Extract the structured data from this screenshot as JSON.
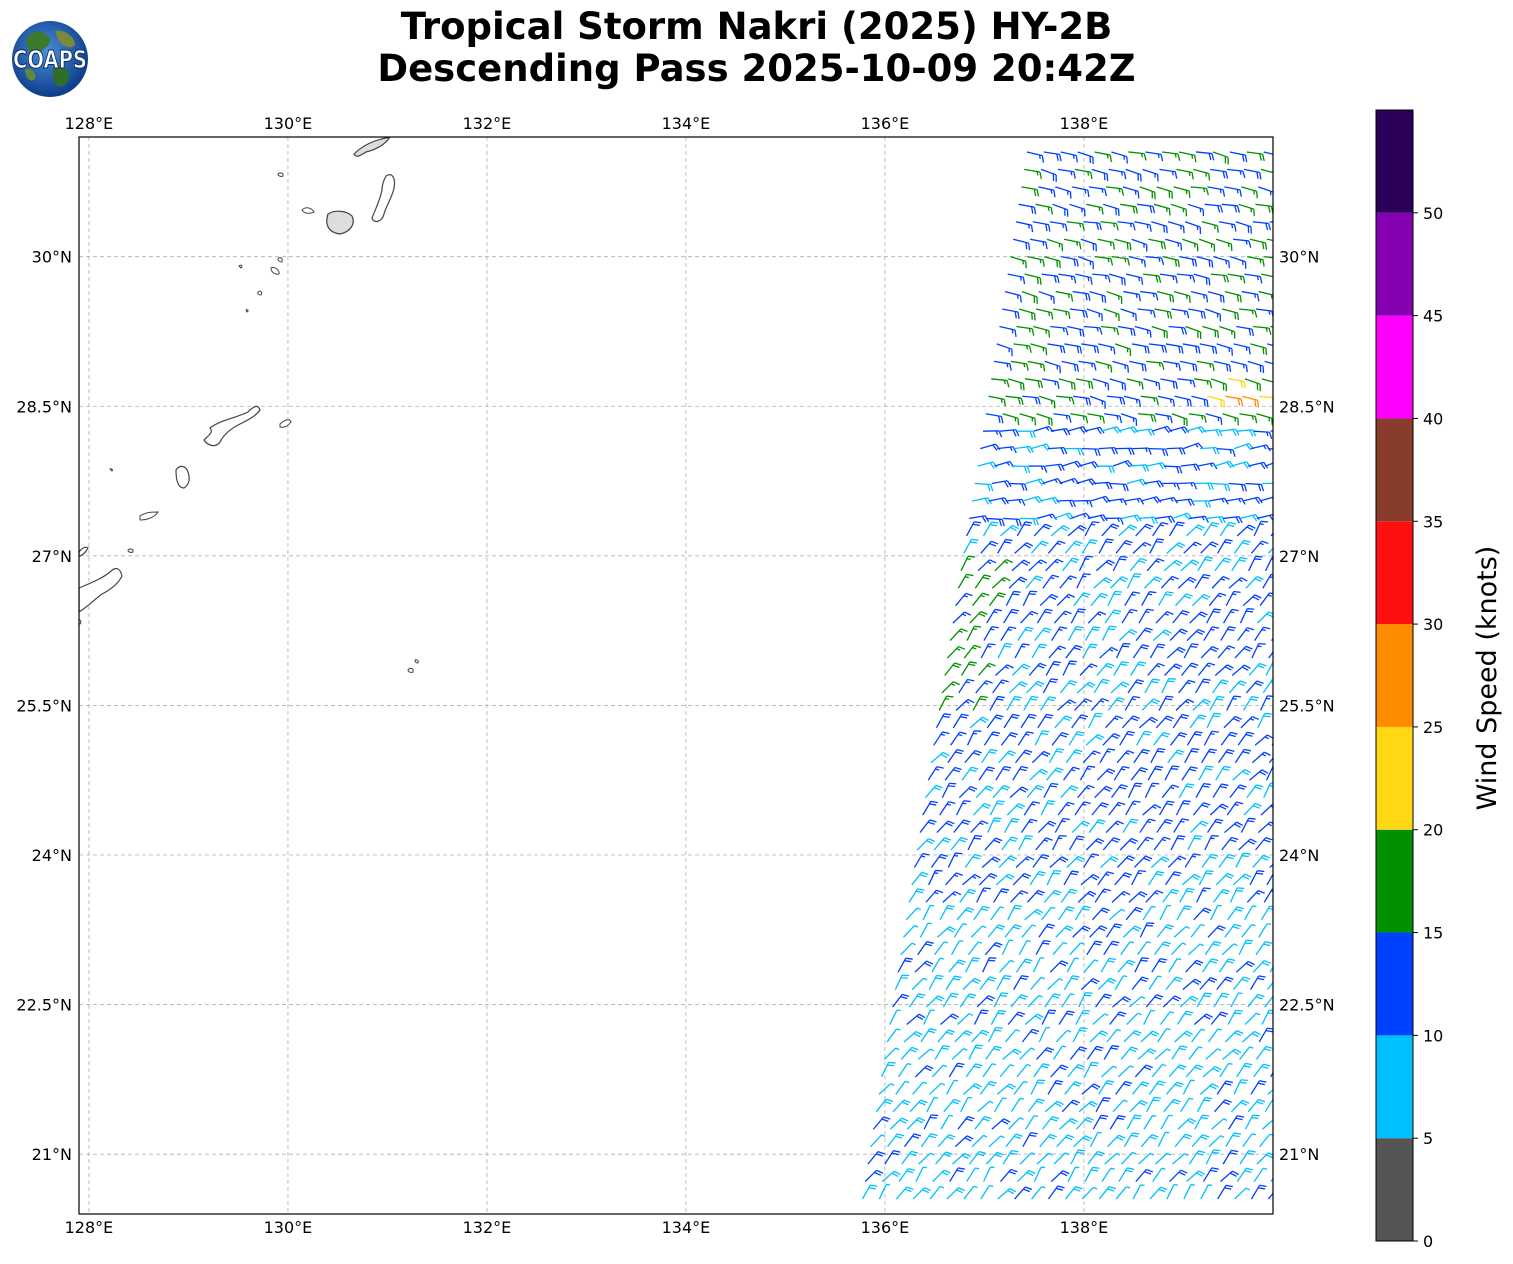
{
  "title": {
    "line1": "Tropical Storm Nakri (2025) HY-2B",
    "line2": "Descending Pass 2025-10-09 20:42Z"
  },
  "logo": {
    "text": "COAPS",
    "icon": "globe-icon"
  },
  "map": {
    "lon_range": [
      127.9,
      139.9
    ],
    "lat_range": [
      20.4,
      31.2
    ],
    "lon_ticks": [
      {
        "value": 128,
        "label": "128°E"
      },
      {
        "value": 130,
        "label": "130°E"
      },
      {
        "value": 132,
        "label": "132°E"
      },
      {
        "value": 134,
        "label": "134°E"
      },
      {
        "value": 136,
        "label": "136°E"
      },
      {
        "value": 138,
        "label": "138°E"
      }
    ],
    "lat_ticks": [
      {
        "value": 30,
        "label": "30°N"
      },
      {
        "value": 28.5,
        "label": "28.5°N"
      },
      {
        "value": 27,
        "label": "27°N"
      },
      {
        "value": 25.5,
        "label": "25.5°N"
      },
      {
        "value": 24,
        "label": "24°N"
      },
      {
        "value": 22.5,
        "label": "22.5°N"
      },
      {
        "value": 21,
        "label": "21°N"
      }
    ],
    "gridlines": true,
    "swath": {
      "note_none": "",
      "corners": [
        [
          137.4,
          31.2
        ],
        [
          139.9,
          31.2
        ],
        [
          139.9,
          20.4
        ],
        [
          135.7,
          20.4
        ]
      ]
    },
    "colors": {
      "land_outline": "#444444",
      "grid": "#b0b0b0"
    }
  },
  "colorbar": {
    "title": "Wind Speed (knots)",
    "ticks": [
      "0",
      "5",
      "10",
      "15",
      "20",
      "25",
      "30",
      "35",
      "40",
      "45",
      "50"
    ],
    "bins": [
      {
        "from": 0,
        "to": 5,
        "color": "#555555"
      },
      {
        "from": 5,
        "to": 10,
        "color": "#00bfff"
      },
      {
        "from": 10,
        "to": 15,
        "color": "#0040ff"
      },
      {
        "from": 15,
        "to": 20,
        "color": "#009000"
      },
      {
        "from": 20,
        "to": 25,
        "color": "#ffd713"
      },
      {
        "from": 25,
        "to": 30,
        "color": "#ff8c00"
      },
      {
        "from": 30,
        "to": 35,
        "color": "#ff1010"
      },
      {
        "from": 35,
        "to": 40,
        "color": "#883c2b"
      },
      {
        "from": 40,
        "to": 45,
        "color": "#ff00ff"
      },
      {
        "from": 45,
        "to": 50,
        "color": "#8400b0"
      },
      {
        "from": 50,
        "to": 55,
        "color": "#2a0058"
      }
    ]
  }
}
